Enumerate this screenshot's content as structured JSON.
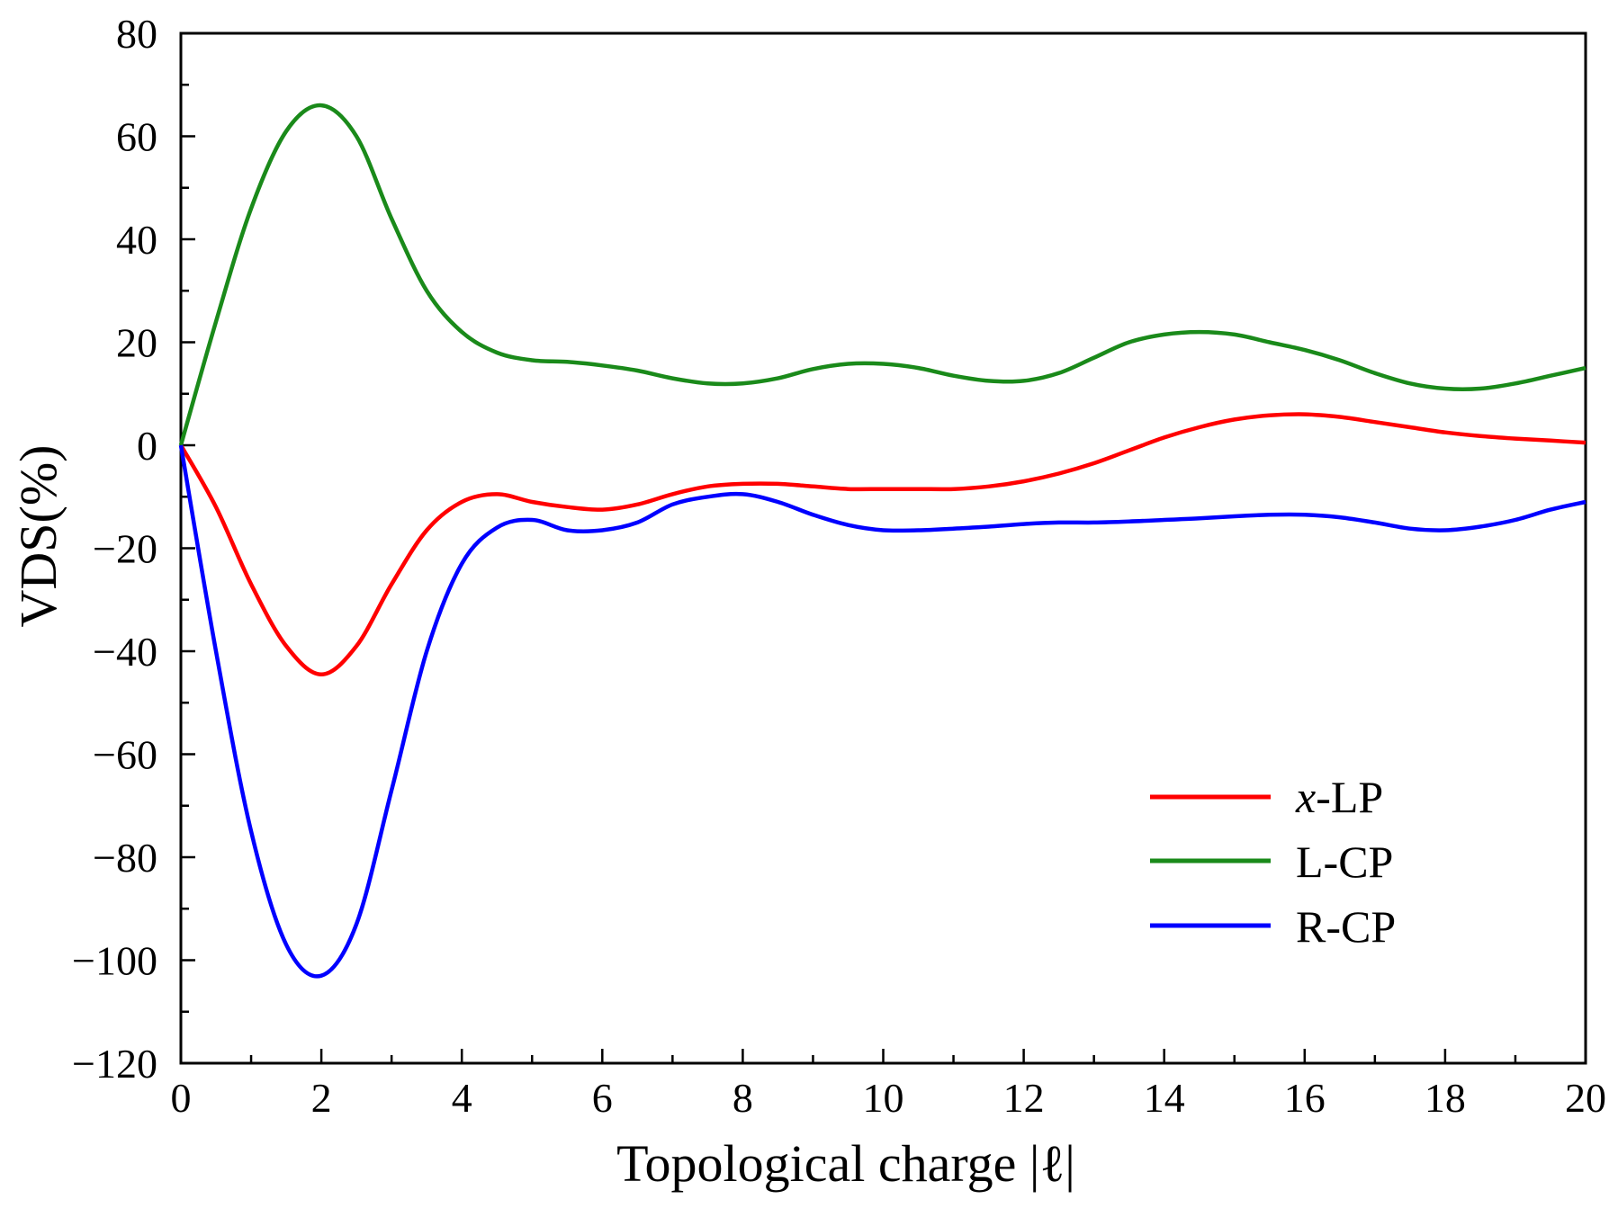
{
  "chart_data": {
    "type": "line",
    "title": "",
    "xlabel": "Topological charge |ℓ|",
    "ylabel": "VDS(%)",
    "xlim": [
      0,
      20
    ],
    "ylim": [
      -120,
      80
    ],
    "xticks": [
      0,
      2,
      4,
      6,
      8,
      10,
      12,
      14,
      16,
      18,
      20
    ],
    "yticks": [
      -120,
      -100,
      -80,
      -60,
      -40,
      -20,
      0,
      20,
      40,
      60,
      80
    ],
    "xtick_labels": [
      "0",
      "2",
      "4",
      "6",
      "8",
      "10",
      "12",
      "14",
      "16",
      "18",
      "20"
    ],
    "ytick_labels": [
      "−120",
      "−100",
      "−80",
      "−60",
      "−40",
      "−20",
      "0",
      "20",
      "40",
      "60",
      "80"
    ],
    "grid": false,
    "legend_position": "bottom-right",
    "series": [
      {
        "name": "x-LP",
        "name_italic": "x",
        "name_rest": "-LP",
        "color": "#ff0000",
        "x": [
          0,
          0.5,
          1,
          1.5,
          2,
          2.5,
          3,
          3.5,
          4,
          4.5,
          5,
          5.5,
          6,
          6.5,
          7,
          7.5,
          8,
          8.5,
          9,
          9.5,
          10,
          10.5,
          11,
          11.5,
          12,
          12.5,
          13,
          13.5,
          14,
          14.5,
          15,
          15.5,
          16,
          16.5,
          17,
          17.5,
          18,
          18.5,
          19,
          19.5,
          20
        ],
        "values": [
          0,
          -12,
          -27,
          -39,
          -44.5,
          -39,
          -27,
          -16.5,
          -11,
          -9.5,
          -11,
          -12,
          -12.5,
          -11.5,
          -9.5,
          -8,
          -7.5,
          -7.5,
          -8,
          -8.5,
          -8.5,
          -8.5,
          -8.5,
          -8,
          -7,
          -5.5,
          -3.5,
          -1,
          1.5,
          3.5,
          5,
          5.8,
          6,
          5.5,
          4.5,
          3.5,
          2.5,
          1.8,
          1.3,
          0.9,
          0.5
        ]
      },
      {
        "name": "L-CP",
        "color": "#1a8a1a",
        "x": [
          0,
          0.5,
          1,
          1.5,
          2,
          2.5,
          3,
          3.5,
          4,
          4.5,
          5,
          5.5,
          6,
          6.5,
          7,
          7.5,
          8,
          8.5,
          9,
          9.5,
          10,
          10.5,
          11,
          11.5,
          12,
          12.5,
          13,
          13.5,
          14,
          14.5,
          15,
          15.5,
          16,
          16.5,
          17,
          17.5,
          18,
          18.5,
          19,
          19.5,
          20
        ],
        "values": [
          0,
          24,
          46,
          61,
          66,
          60,
          44,
          30,
          22,
          18,
          16.5,
          16.2,
          15.5,
          14.5,
          13,
          12,
          12,
          13,
          14.8,
          15.8,
          15.8,
          15,
          13.5,
          12.5,
          12.5,
          14,
          17,
          20,
          21.5,
          22,
          21.5,
          20,
          18.5,
          16.5,
          14,
          12,
          11,
          11,
          12,
          13.5,
          15
        ]
      },
      {
        "name": "R-CP",
        "color": "#0000ff",
        "x": [
          0,
          0.5,
          1,
          1.5,
          2,
          2.5,
          3,
          3.5,
          4,
          4.5,
          5,
          5.5,
          6,
          6.5,
          7,
          7.5,
          8,
          8.5,
          9,
          9.5,
          10,
          10.5,
          11,
          11.5,
          12,
          12.5,
          13,
          13.5,
          14,
          14.5,
          15,
          15.5,
          16,
          16.5,
          17,
          17.5,
          18,
          18.5,
          19,
          19.5,
          20
        ],
        "values": [
          0,
          -40,
          -75,
          -97,
          -103,
          -93,
          -67,
          -40,
          -23,
          -16,
          -14.5,
          -16.5,
          -16.5,
          -15,
          -11.5,
          -10,
          -9.5,
          -11,
          -13.5,
          -15.5,
          -16.5,
          -16.5,
          -16.2,
          -15.8,
          -15.3,
          -15,
          -15,
          -14.8,
          -14.5,
          -14.2,
          -13.8,
          -13.5,
          -13.5,
          -14,
          -15,
          -16.2,
          -16.5,
          -15.8,
          -14.5,
          -12.5,
          -11
        ]
      }
    ]
  }
}
